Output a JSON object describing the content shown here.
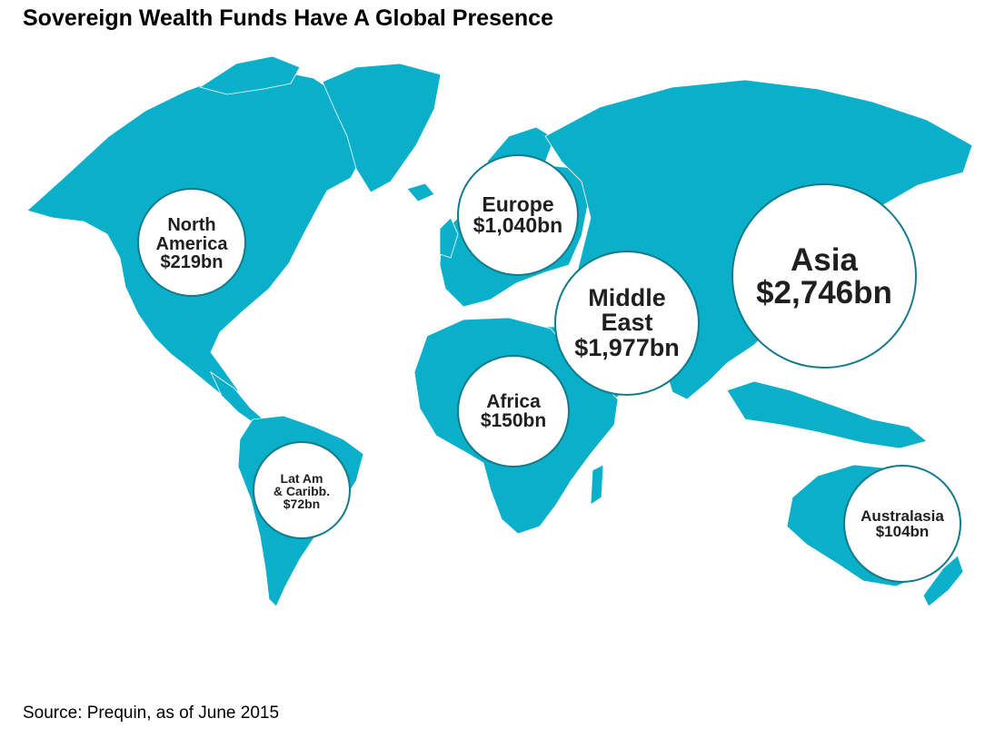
{
  "title": "Sovereign Wealth Funds Have A Global Presence",
  "source": "Source: Prequin, as of June 2015",
  "colors": {
    "land": "#0AAFC9",
    "ring": "#137A8A",
    "circle_fill": "#FFFFFF",
    "label": "#1F1F1F"
  },
  "regions": [
    {
      "name": "North America",
      "lines": [
        "North",
        "America",
        "$219bn"
      ],
      "value_bn": 219
    },
    {
      "name": "Europe",
      "lines": [
        "Europe",
        "$1,040bn"
      ],
      "value_bn": 1040
    },
    {
      "name": "Middle East",
      "lines": [
        "Middle",
        "East",
        "$1,977bn"
      ],
      "value_bn": 1977
    },
    {
      "name": "Asia",
      "lines": [
        "Asia",
        "$2,746bn"
      ],
      "value_bn": 2746
    },
    {
      "name": "Africa",
      "lines": [
        "Africa",
        "$150bn"
      ],
      "value_bn": 150
    },
    {
      "name": "Lat Am & Caribb.",
      "lines": [
        "Lat Am",
        "& Caribb.",
        "$72bn"
      ],
      "value_bn": 72
    },
    {
      "name": "Australasia",
      "lines": [
        "Australasia",
        "$104bn"
      ],
      "value_bn": 104
    }
  ]
}
